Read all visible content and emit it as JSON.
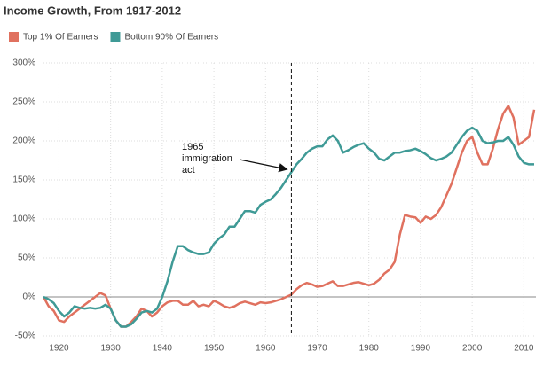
{
  "chart_data": {
    "type": "line",
    "title": "Income Growth, From 1917-2012",
    "x": [
      1917,
      1918,
      1919,
      1920,
      1921,
      1922,
      1923,
      1924,
      1925,
      1926,
      1927,
      1928,
      1929,
      1930,
      1931,
      1932,
      1933,
      1934,
      1935,
      1936,
      1937,
      1938,
      1939,
      1940,
      1941,
      1942,
      1943,
      1944,
      1945,
      1946,
      1947,
      1948,
      1949,
      1950,
      1951,
      1952,
      1953,
      1954,
      1955,
      1956,
      1957,
      1958,
      1959,
      1960,
      1961,
      1962,
      1963,
      1964,
      1965,
      1966,
      1967,
      1968,
      1969,
      1970,
      1971,
      1972,
      1973,
      1974,
      1975,
      1976,
      1977,
      1978,
      1979,
      1980,
      1981,
      1982,
      1983,
      1984,
      1985,
      1986,
      1987,
      1988,
      1989,
      1990,
      1991,
      1992,
      1993,
      1994,
      1995,
      1996,
      1997,
      1998,
      1999,
      2000,
      2001,
      2002,
      2003,
      2004,
      2005,
      2006,
      2007,
      2008,
      2009,
      2010,
      2011,
      2012
    ],
    "series": [
      {
        "name": "Top 1% Of Earners",
        "color": "#e0715f",
        "values": [
          0,
          -12,
          -18,
          -30,
          -32,
          -25,
          -20,
          -15,
          -10,
          -5,
          0,
          5,
          2,
          -15,
          -30,
          -38,
          -38,
          -32,
          -25,
          -15,
          -18,
          -25,
          -20,
          -12,
          -7,
          -5,
          -5,
          -10,
          -10,
          -5,
          -12,
          -10,
          -12,
          -5,
          -8,
          -12,
          -14,
          -12,
          -8,
          -6,
          -8,
          -10,
          -7,
          -8,
          -7,
          -5,
          -3,
          0,
          3,
          10,
          15,
          18,
          16,
          13,
          14,
          17,
          20,
          14,
          14,
          16,
          18,
          19,
          17,
          15,
          17,
          22,
          30,
          35,
          45,
          80,
          105,
          103,
          102,
          95,
          103,
          100,
          105,
          115,
          130,
          145,
          165,
          185,
          200,
          205,
          185,
          170,
          170,
          190,
          215,
          235,
          245,
          230,
          195,
          200,
          205,
          240
        ]
      },
      {
        "name": "Bottom 90% Of Earners",
        "color": "#3f9a96",
        "values": [
          0,
          -3,
          -8,
          -18,
          -25,
          -20,
          -12,
          -14,
          -15,
          -14,
          -15,
          -14,
          -10,
          -15,
          -30,
          -38,
          -38,
          -35,
          -28,
          -20,
          -18,
          -20,
          -15,
          0,
          20,
          45,
          65,
          65,
          60,
          57,
          55,
          55,
          57,
          68,
          75,
          80,
          90,
          90,
          100,
          110,
          110,
          108,
          118,
          122,
          125,
          132,
          140,
          150,
          160,
          170,
          177,
          185,
          190,
          193,
          193,
          202,
          207,
          200,
          185,
          188,
          192,
          195,
          197,
          190,
          185,
          177,
          175,
          180,
          185,
          185,
          187,
          188,
          190,
          187,
          183,
          178,
          175,
          177,
          180,
          185,
          195,
          205,
          213,
          217,
          213,
          200,
          197,
          198,
          200,
          200,
          205,
          195,
          180,
          172,
          170,
          170
        ]
      }
    ],
    "xlim": [
      1917,
      2012
    ],
    "xticks": [
      1920,
      1930,
      1940,
      1950,
      1960,
      1970,
      1980,
      1990,
      2000,
      2010
    ],
    "ylim": [
      -50,
      300
    ],
    "yticks": [
      {
        "value": -50,
        "label": "-50%"
      },
      {
        "value": 0,
        "label": "0%"
      },
      {
        "value": 50,
        "label": "50%"
      },
      {
        "value": 100,
        "label": "100%"
      },
      {
        "value": 150,
        "label": "150%"
      },
      {
        "value": 200,
        "label": "200%"
      },
      {
        "value": 250,
        "label": "250%"
      },
      {
        "value": 300,
        "label": "300%"
      }
    ],
    "grid": true,
    "annotation": {
      "x": 1965,
      "text": [
        "1965",
        "immigration",
        "act"
      ]
    }
  }
}
